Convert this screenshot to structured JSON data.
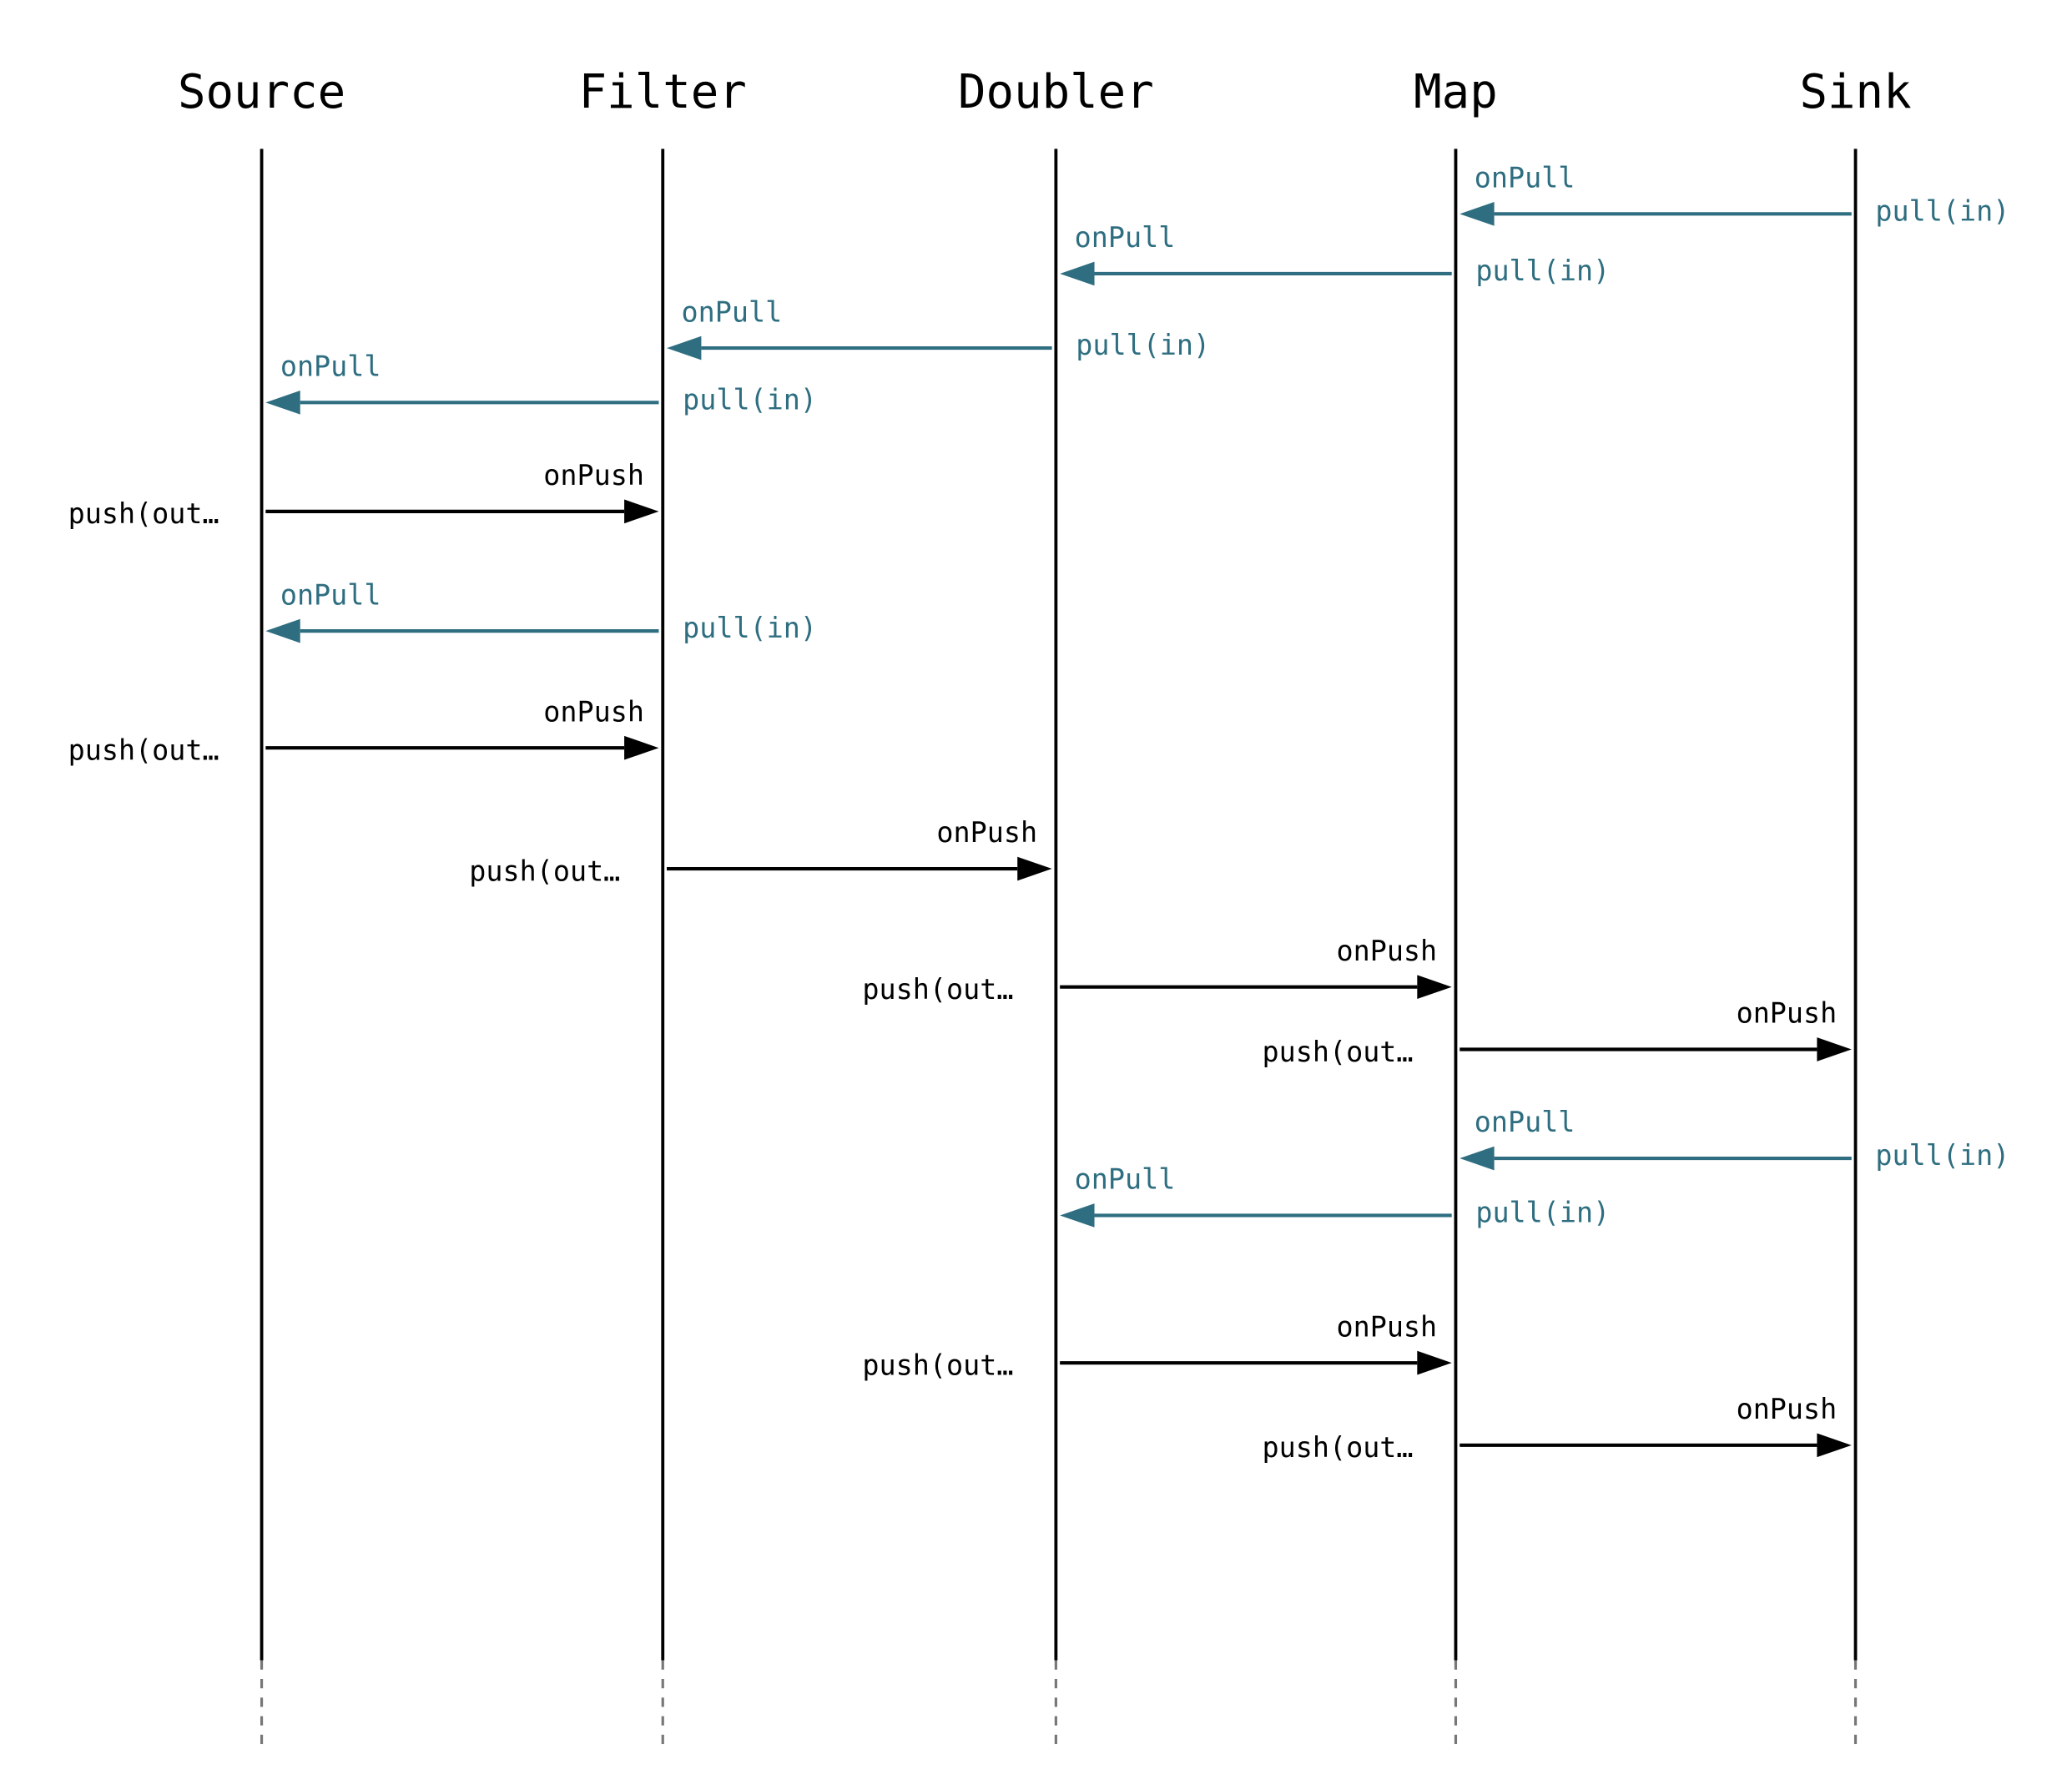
{
  "colors": {
    "pull": "#2e6e80",
    "push": "#000000",
    "lifeline": "#000000",
    "lifeline_tail": "#777777"
  },
  "participants": [
    "Source",
    "Filter",
    "Doubler",
    "Map",
    "Sink"
  ],
  "messages": [
    {
      "kind": "pull",
      "from": 4,
      "to": 3,
      "handler": "onPull",
      "call": "pull(in)"
    },
    {
      "kind": "pull",
      "from": 3,
      "to": 2,
      "handler": "onPull",
      "call": "pull(in)"
    },
    {
      "kind": "pull",
      "from": 2,
      "to": 1,
      "handler": "onPull",
      "call": "pull(in)"
    },
    {
      "kind": "pull",
      "from": 1,
      "to": 0,
      "handler": "onPull",
      "call": "pull(in)"
    },
    {
      "kind": "push",
      "from": 0,
      "to": 1,
      "handler": "onPush",
      "call": "push(out…"
    },
    {
      "kind": "pull",
      "from": 1,
      "to": 0,
      "handler": "onPull",
      "call": "pull(in)"
    },
    {
      "kind": "push",
      "from": 0,
      "to": 1,
      "handler": "onPush",
      "call": "push(out…"
    },
    {
      "kind": "push",
      "from": 1,
      "to": 2,
      "handler": "onPush",
      "call": "push(out…"
    },
    {
      "kind": "push",
      "from": 2,
      "to": 3,
      "handler": "onPush",
      "call": "push(out…"
    },
    {
      "kind": "push",
      "from": 3,
      "to": 4,
      "handler": "onPush",
      "call": "push(out…"
    },
    {
      "kind": "pull",
      "from": 4,
      "to": 3,
      "handler": "onPull",
      "call": "pull(in)"
    },
    {
      "kind": "pull",
      "from": 3,
      "to": 2,
      "handler": "onPull",
      "call": "pull(in)"
    },
    {
      "kind": "push",
      "from": 2,
      "to": 3,
      "handler": "onPush",
      "call": "push(out…"
    },
    {
      "kind": "push",
      "from": 3,
      "to": 4,
      "handler": "onPush",
      "call": "push(out…"
    }
  ]
}
